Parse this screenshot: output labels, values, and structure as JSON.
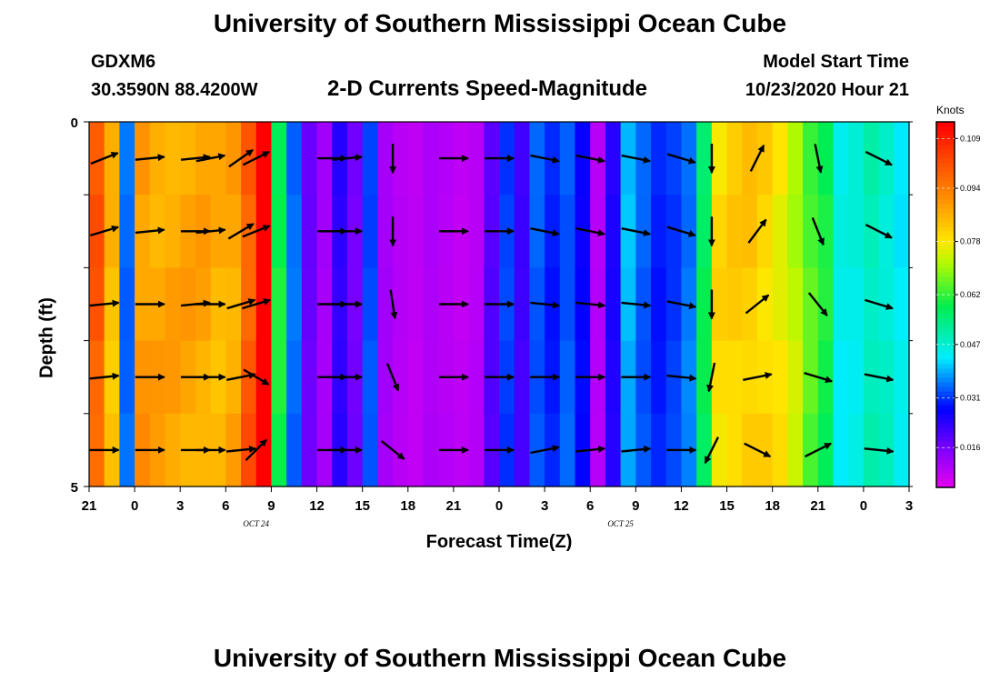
{
  "page": {
    "title_top": "University of Southern Mississippi Ocean Cube",
    "title_bottom": "University of Southern Mississippi Ocean Cube",
    "station": "GDXM6",
    "location": "30.3590N 88.4200W",
    "plot_title": "2-D Currents Speed-Magnitude",
    "model_start_label": "Model Start Time",
    "model_start_value": "10/23/2020 Hour 21"
  },
  "colors": {
    "arrow": "#000000",
    "frame": "#000000"
  },
  "chart_data": {
    "type": "heatmap",
    "title": "2-D Currents Speed-Magnitude",
    "xlabel": "Forecast Time(Z)",
    "ylabel": "Depth (ft)",
    "units_label": "Knots",
    "x_tick_labels": [
      "21",
      "0",
      "3",
      "6",
      "9",
      "12",
      "15",
      "18",
      "21",
      "0",
      "3",
      "6",
      "9",
      "12",
      "15",
      "18",
      "21",
      "0",
      "3"
    ],
    "date_labels": [
      {
        "text": "OCT 24",
        "at_hour": 11
      },
      {
        "text": "OCT 25",
        "at_hour": 35
      }
    ],
    "y_tick_labels": [
      "0",
      "5"
    ],
    "ylim": [
      0,
      5
    ],
    "hours": 54,
    "depth_levels": 5,
    "colorbar_ticks": [
      "0.109",
      "0.094",
      "0.078",
      "0.062",
      "0.047",
      "0.031",
      "0.016"
    ],
    "vmin": 0.004,
    "vmax": 0.114,
    "speed_by_hour": [
      0.1,
      0.085,
      0.035,
      0.09,
      0.088,
      0.088,
      0.088,
      0.088,
      0.086,
      0.088,
      0.1,
      0.12,
      0.06,
      0.035,
      0.018,
      0.012,
      0.024,
      0.017,
      0.033,
      0.012,
      0.01,
      0.009,
      0.011,
      0.01,
      0.009,
      0.01,
      0.02,
      0.032,
      0.022,
      0.034,
      0.03,
      0.034,
      0.028,
      0.01,
      0.025,
      0.04,
      0.034,
      0.03,
      0.032,
      0.036,
      0.058,
      0.08,
      0.082,
      0.083,
      0.081,
      0.078,
      0.073,
      0.065,
      0.06,
      0.045,
      0.046,
      0.05,
      0.048,
      0.044
    ],
    "vectors": [
      {
        "hour": 1,
        "rows": [
          {
            "dx": 1,
            "dy": -0.4
          },
          {
            "dx": 1,
            "dy": -0.3
          },
          {
            "dx": 1,
            "dy": -0.1
          },
          {
            "dx": 1,
            "dy": -0.1
          },
          {
            "dx": 1,
            "dy": 0
          }
        ]
      },
      {
        "hour": 4,
        "rows": [
          {
            "dx": 1,
            "dy": -0.1
          },
          {
            "dx": 1,
            "dy": -0.1
          },
          {
            "dx": 1,
            "dy": 0
          },
          {
            "dx": 1,
            "dy": 0
          },
          {
            "dx": 1,
            "dy": 0
          }
        ]
      },
      {
        "hour": 7,
        "rows": [
          {
            "dx": 1,
            "dy": -0.1
          },
          {
            "dx": 1,
            "dy": 0
          },
          {
            "dx": 1,
            "dy": -0.1
          },
          {
            "dx": 1,
            "dy": 0
          },
          {
            "dx": 1,
            "dy": 0
          }
        ]
      },
      {
        "hour": 8,
        "rows": [
          {
            "dx": 1,
            "dy": -0.2
          },
          {
            "dx": 1,
            "dy": -0.1
          },
          {
            "dx": 1,
            "dy": 0
          },
          {
            "dx": 1,
            "dy": 0
          },
          {
            "dx": 1,
            "dy": 0
          }
        ]
      },
      {
        "hour": 10,
        "rows": [
          {
            "dx": 1,
            "dy": -0.7
          },
          {
            "dx": 1,
            "dy": -0.6
          },
          {
            "dx": 1,
            "dy": -0.3
          },
          {
            "dx": 1,
            "dy": -0.2
          },
          {
            "dx": 1,
            "dy": -0.1
          }
        ]
      },
      {
        "hour": 11,
        "rows": [
          {
            "dx": 1,
            "dy": -0.5
          },
          {
            "dx": 1,
            "dy": -0.4
          },
          {
            "dx": 1,
            "dy": -0.3
          },
          {
            "dx": 1,
            "dy": 0.6
          },
          {
            "dx": 0.7,
            "dy": -0.7
          }
        ]
      },
      {
        "hour": 16,
        "rows": [
          {
            "dx": 1,
            "dy": 0
          },
          {
            "dx": 1,
            "dy": 0
          },
          {
            "dx": 1,
            "dy": 0
          },
          {
            "dx": 1,
            "dy": 0
          },
          {
            "dx": 1,
            "dy": 0
          }
        ]
      },
      {
        "hour": 17,
        "rows": [
          {
            "dx": 1,
            "dy": -0.1
          },
          {
            "dx": 1,
            "dy": 0
          },
          {
            "dx": 1,
            "dy": 0
          },
          {
            "dx": 1,
            "dy": 0
          },
          {
            "dx": 1,
            "dy": 0
          }
        ]
      },
      {
        "hour": 20,
        "rows": [
          {
            "dx": 0,
            "dy": 1
          },
          {
            "dx": 0,
            "dy": 1
          },
          {
            "dx": 0.15,
            "dy": 1
          },
          {
            "dx": 0.4,
            "dy": 1
          },
          {
            "dx": 1,
            "dy": 0.8
          }
        ]
      },
      {
        "hour": 24,
        "rows": [
          {
            "dx": 1,
            "dy": 0
          },
          {
            "dx": 1,
            "dy": 0
          },
          {
            "dx": 1,
            "dy": 0
          },
          {
            "dx": 1,
            "dy": 0
          },
          {
            "dx": 1,
            "dy": 0
          }
        ]
      },
      {
        "hour": 27,
        "rows": [
          {
            "dx": 1,
            "dy": 0
          },
          {
            "dx": 1,
            "dy": 0
          },
          {
            "dx": 1,
            "dy": 0
          },
          {
            "dx": 1,
            "dy": 0
          },
          {
            "dx": 1,
            "dy": 0
          }
        ]
      },
      {
        "hour": 30,
        "rows": [
          {
            "dx": 1,
            "dy": 0.2
          },
          {
            "dx": 1,
            "dy": 0.2
          },
          {
            "dx": 1,
            "dy": 0.1
          },
          {
            "dx": 1,
            "dy": 0
          },
          {
            "dx": 1,
            "dy": -0.2
          }
        ]
      },
      {
        "hour": 33,
        "rows": [
          {
            "dx": 1,
            "dy": 0.2
          },
          {
            "dx": 1,
            "dy": 0.2
          },
          {
            "dx": 1,
            "dy": 0.1
          },
          {
            "dx": 1,
            "dy": 0
          },
          {
            "dx": 1,
            "dy": -0.1
          }
        ]
      },
      {
        "hour": 36,
        "rows": [
          {
            "dx": 1,
            "dy": 0.2
          },
          {
            "dx": 1,
            "dy": 0.2
          },
          {
            "dx": 1,
            "dy": 0.1
          },
          {
            "dx": 1,
            "dy": 0
          },
          {
            "dx": 1,
            "dy": -0.1
          }
        ]
      },
      {
        "hour": 39,
        "rows": [
          {
            "dx": 1,
            "dy": 0.3
          },
          {
            "dx": 1,
            "dy": 0.3
          },
          {
            "dx": 1,
            "dy": 0.2
          },
          {
            "dx": 1,
            "dy": 0.1
          },
          {
            "dx": 1,
            "dy": 0
          }
        ]
      },
      {
        "hour": 41,
        "rows": [
          {
            "dx": 0,
            "dy": 1
          },
          {
            "dx": 0,
            "dy": 1
          },
          {
            "dx": 0,
            "dy": 1
          },
          {
            "dx": -0.2,
            "dy": 1
          },
          {
            "dx": -0.5,
            "dy": 1
          }
        ]
      },
      {
        "hour": 44,
        "rows": [
          {
            "dx": 0.5,
            "dy": -1
          },
          {
            "dx": 0.6,
            "dy": -0.8
          },
          {
            "dx": 1,
            "dy": -0.8
          },
          {
            "dx": 1,
            "dy": -0.2
          },
          {
            "dx": 1,
            "dy": 0.5
          }
        ]
      },
      {
        "hour": 48,
        "rows": [
          {
            "dx": 0.2,
            "dy": 1
          },
          {
            "dx": 0.4,
            "dy": 1
          },
          {
            "dx": 0.8,
            "dy": 1
          },
          {
            "dx": 1,
            "dy": 0.3
          },
          {
            "dx": 1,
            "dy": -0.5
          }
        ]
      },
      {
        "hour": 52,
        "rows": [
          {
            "dx": 1,
            "dy": 0.5
          },
          {
            "dx": 1,
            "dy": 0.5
          },
          {
            "dx": 1,
            "dy": 0.3
          },
          {
            "dx": 1,
            "dy": 0.2
          },
          {
            "dx": 1,
            "dy": 0.1
          }
        ]
      }
    ]
  }
}
